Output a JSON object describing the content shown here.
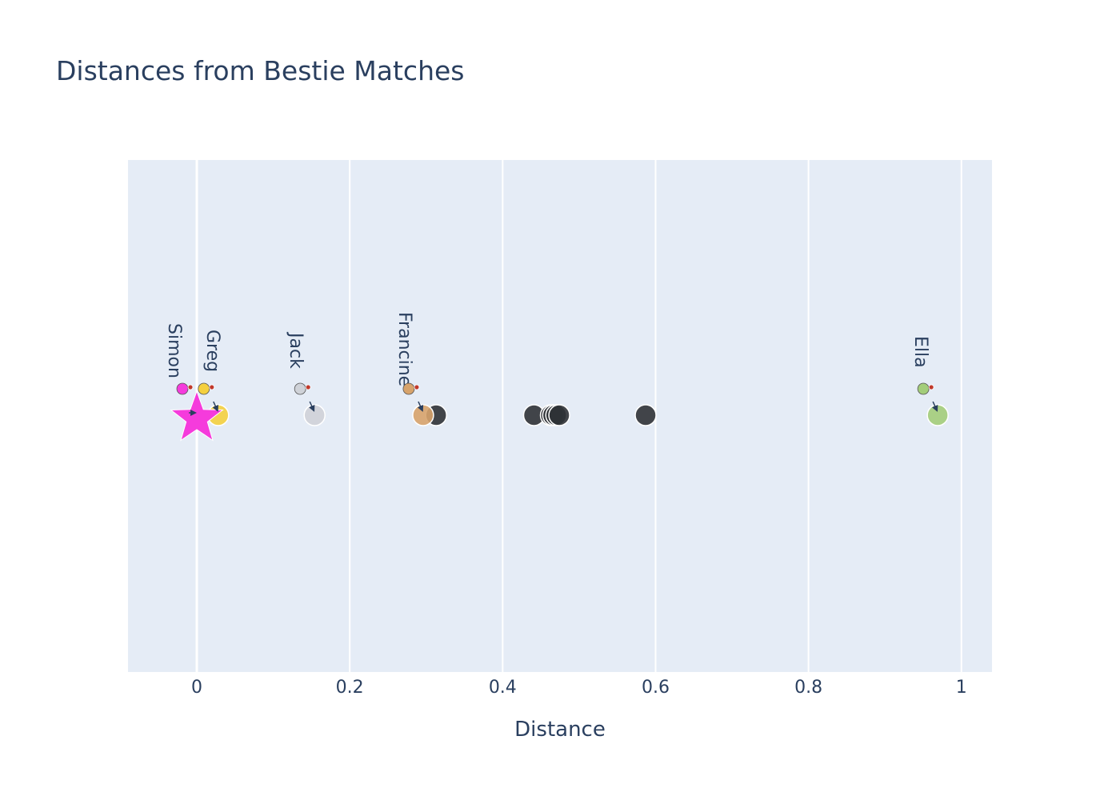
{
  "chart_data": {
    "type": "scatter",
    "title": "Distances from Bestie Matches",
    "xlabel": "Distance",
    "ylabel": "",
    "xlim": [
      -0.09,
      1.04
    ],
    "xticks": [
      0,
      0.2,
      0.4,
      0.6,
      0.8,
      1
    ],
    "xtick_labels": [
      "0",
      "0.2",
      "0.4",
      "0.6",
      "0.8",
      "1"
    ],
    "grid": true,
    "legend": "none",
    "reference_point": {
      "x": 0,
      "y": 0,
      "marker": "star",
      "color": "#f53bdc"
    },
    "named_points": [
      {
        "name": "Simon",
        "x": 0.0,
        "y": 0,
        "color": "#f53bdc",
        "icon": "unicorn-icon"
      },
      {
        "name": "Greg",
        "x": 0.028,
        "y": 0,
        "color": "#f4d03f",
        "icon": "yellow-face-icon"
      },
      {
        "name": "Jack",
        "x": 0.154,
        "y": 0,
        "color": "#cfd2d8",
        "icon": "grey-face-icon"
      },
      {
        "name": "Francine",
        "x": 0.296,
        "y": 0,
        "color": "#d7a36b",
        "icon": "orange-face-icon"
      },
      {
        "name": "Ella",
        "x": 0.969,
        "y": 0,
        "color": "#a3cd7a",
        "icon": "frog-icon"
      }
    ],
    "other_points": {
      "color": "#2f3236",
      "x": [
        0.313,
        0.441,
        0.463,
        0.466,
        0.47,
        0.474,
        0.587
      ]
    }
  }
}
